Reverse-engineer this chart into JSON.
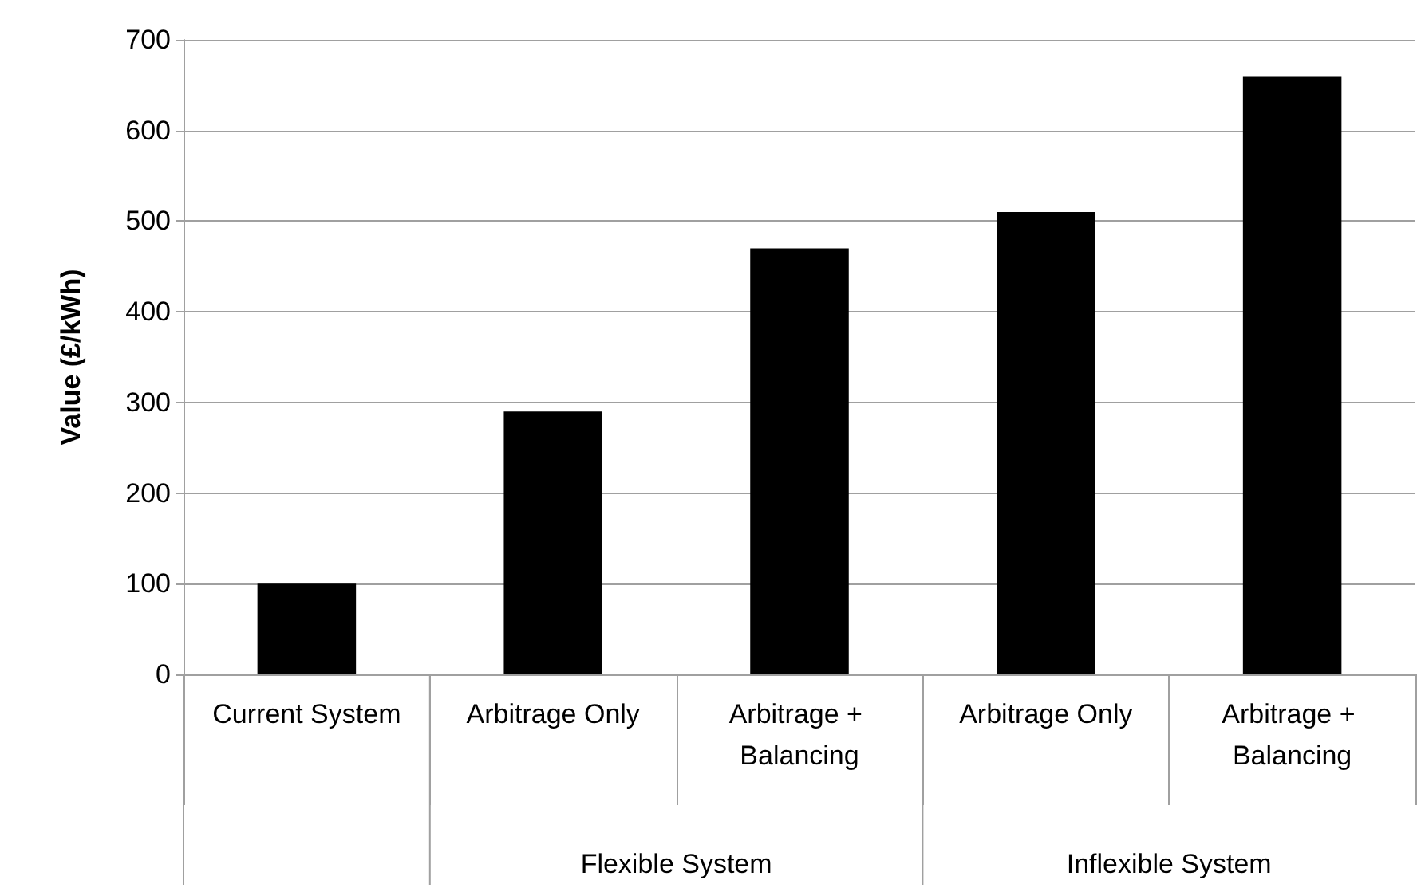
{
  "chart_data": {
    "type": "bar",
    "ylabel": "Value (£/kWh)",
    "categories": [
      "Current System",
      "Arbitrage Only",
      "Arbitrage + Balancing",
      "Arbitrage Only",
      "Arbitrage + Balancing"
    ],
    "values": [
      100,
      290,
      470,
      510,
      660
    ],
    "color": "#000000",
    "ylim": [
      0,
      700
    ],
    "yticks": [
      0,
      100,
      200,
      300,
      400,
      500,
      600,
      700
    ],
    "grid": "y",
    "annotations": [
      "Flexible System",
      "Inflexible System"
    ]
  }
}
